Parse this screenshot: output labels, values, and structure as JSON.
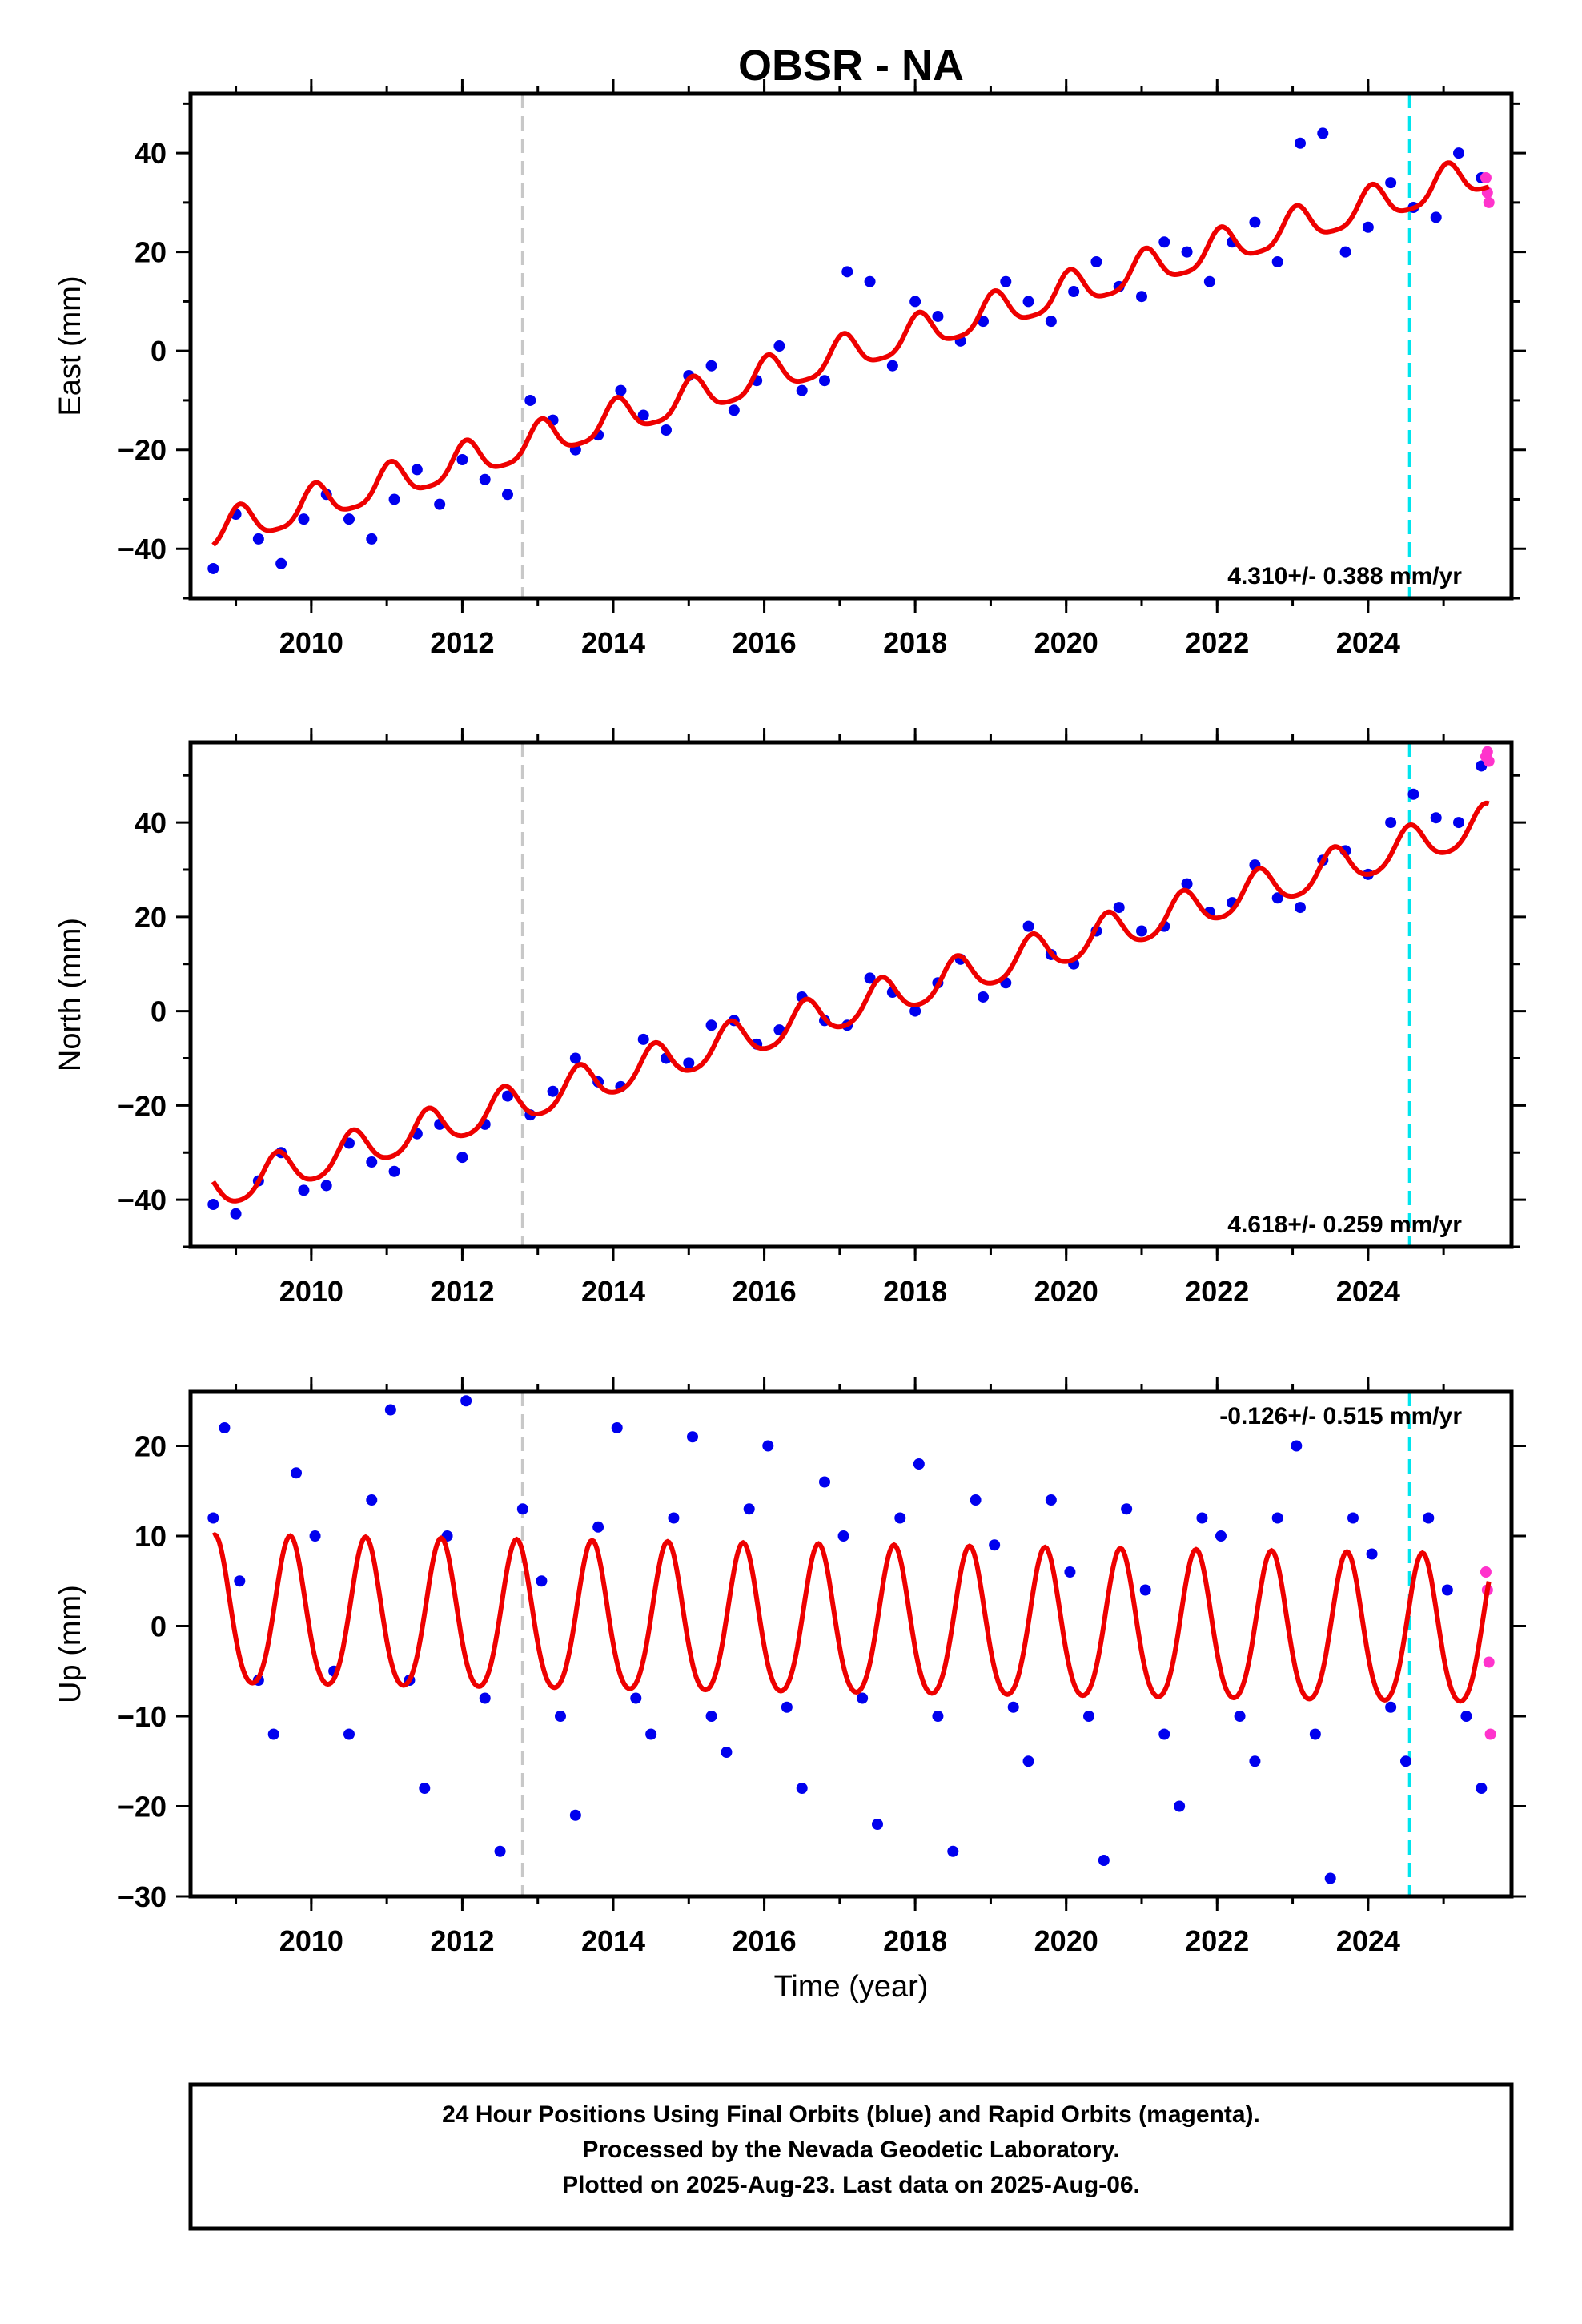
{
  "title": "OBSR - NA",
  "xlabel": "Time (year)",
  "footer": [
    "24 Hour Positions Using Final Orbits (blue) and Rapid Orbits (magenta).",
    "Processed by the Nevada Geodetic Laboratory.",
    "Plotted on 2025-Aug-23. Last data on 2025-Aug-06."
  ],
  "colors": {
    "final_orbits": "#0000ee",
    "rapid_orbits": "#ff33cc",
    "model": "#ee0000",
    "equipment_change": "#c8c8c8",
    "event": "#00e5ee"
  },
  "chart_data": [
    {
      "type": "scatter",
      "panel": "east",
      "ylabel": "East (mm)",
      "xlim": [
        2008.4,
        2025.9
      ],
      "ylim": [
        -50,
        52
      ],
      "xticks": [
        2010,
        2012,
        2014,
        2016,
        2018,
        2020,
        2022,
        2024
      ],
      "yticks": [
        -40,
        -20,
        0,
        20,
        40
      ],
      "rate_label": "4.310+/- 0.388 mm/yr",
      "rate_position": "bottom-right",
      "vlines": [
        {
          "x": 2012.8,
          "kind": "equipment_change"
        },
        {
          "x": 2024.55,
          "kind": "event"
        }
      ],
      "series": [
        {
          "kind": "final_orbits",
          "x": [
            2008.7,
            2009.0,
            2009.3,
            2009.6,
            2009.9,
            2010.2,
            2010.5,
            2010.8,
            2011.1,
            2011.4,
            2011.7,
            2012.0,
            2012.3,
            2012.6,
            2012.9,
            2013.2,
            2013.5,
            2013.8,
            2014.1,
            2014.4,
            2014.7,
            2015.0,
            2015.3,
            2015.6,
            2015.9,
            2016.2,
            2016.5,
            2016.8,
            2017.1,
            2017.4,
            2017.7,
            2018.0,
            2018.3,
            2018.6,
            2018.9,
            2019.2,
            2019.5,
            2019.8,
            2020.1,
            2020.4,
            2020.7,
            2021.0,
            2021.3,
            2021.6,
            2021.9,
            2022.2,
            2022.5,
            2022.8,
            2023.1,
            2023.4,
            2023.7,
            2024.0,
            2024.3,
            2024.6,
            2024.9,
            2025.2,
            2025.5
          ],
          "y": [
            -44,
            -33,
            -38,
            -43,
            -34,
            -29,
            -34,
            -38,
            -30,
            -24,
            -31,
            -22,
            -26,
            -29,
            -10,
            -14,
            -20,
            -17,
            -8,
            -13,
            -16,
            -5,
            -3,
            -12,
            -6,
            1,
            -8,
            -6,
            16,
            14,
            -3,
            10,
            7,
            2,
            6,
            14,
            10,
            6,
            12,
            18,
            13,
            11,
            22,
            20,
            14,
            22,
            26,
            18,
            42,
            44,
            20,
            25,
            34,
            29,
            27,
            40,
            35
          ]
        },
        {
          "kind": "rapid_orbits",
          "x": [
            2025.56,
            2025.58,
            2025.6
          ],
          "y": [
            35,
            32,
            30
          ]
        }
      ],
      "model": {
        "rate_mm_per_yr": 4.31,
        "t0": 2017.0,
        "y0": -1.1,
        "annual_amp": 3.6,
        "annual_phase_yr": 0.05,
        "semiannual_amp": 0.8
      }
    },
    {
      "type": "scatter",
      "panel": "north",
      "ylabel": "North (mm)",
      "xlim": [
        2008.4,
        2025.9
      ],
      "ylim": [
        -50,
        57
      ],
      "xticks": [
        2010,
        2012,
        2014,
        2016,
        2018,
        2020,
        2022,
        2024
      ],
      "yticks": [
        -40,
        -20,
        0,
        20,
        40
      ],
      "rate_label": "4.618+/- 0.259 mm/yr",
      "rate_position": "bottom-right",
      "vlines": [
        {
          "x": 2012.8,
          "kind": "equipment_change"
        },
        {
          "x": 2024.55,
          "kind": "event"
        }
      ],
      "series": [
        {
          "kind": "final_orbits",
          "x": [
            2008.7,
            2009.0,
            2009.3,
            2009.6,
            2009.9,
            2010.2,
            2010.5,
            2010.8,
            2011.1,
            2011.4,
            2011.7,
            2012.0,
            2012.3,
            2012.6,
            2012.9,
            2013.2,
            2013.5,
            2013.8,
            2014.1,
            2014.4,
            2014.7,
            2015.0,
            2015.3,
            2015.6,
            2015.9,
            2016.2,
            2016.5,
            2016.8,
            2017.1,
            2017.4,
            2017.7,
            2018.0,
            2018.3,
            2018.6,
            2018.9,
            2019.2,
            2019.5,
            2019.8,
            2020.1,
            2020.4,
            2020.7,
            2021.0,
            2021.3,
            2021.6,
            2021.9,
            2022.2,
            2022.5,
            2022.8,
            2023.1,
            2023.4,
            2023.7,
            2024.0,
            2024.3,
            2024.6,
            2024.9,
            2025.2,
            2025.5
          ],
          "y": [
            -41,
            -43,
            -36,
            -30,
            -38,
            -37,
            -28,
            -32,
            -34,
            -26,
            -24,
            -31,
            -24,
            -18,
            -22,
            -17,
            -10,
            -15,
            -16,
            -6,
            -10,
            -11,
            -3,
            -2,
            -7,
            -4,
            3,
            -2,
            -3,
            7,
            4,
            0,
            6,
            11,
            3,
            6,
            18,
            12,
            10,
            17,
            22,
            17,
            18,
            27,
            21,
            23,
            31,
            24,
            22,
            32,
            34,
            29,
            40,
            46,
            41,
            40,
            52
          ]
        },
        {
          "kind": "rapid_orbits",
          "x": [
            2025.56,
            2025.58,
            2025.6
          ],
          "y": [
            54,
            55,
            53
          ]
        }
      ],
      "model": {
        "rate_mm_per_yr": 4.618,
        "t0": 2017.0,
        "y0": 0.0,
        "annual_amp": 4.0,
        "annual_phase_yr": 0.55,
        "semiannual_amp": 0.6
      }
    },
    {
      "type": "scatter",
      "panel": "up",
      "ylabel": "Up (mm)",
      "xlim": [
        2008.4,
        2025.9
      ],
      "ylim": [
        -30,
        26
      ],
      "xticks": [
        2010,
        2012,
        2014,
        2016,
        2018,
        2020,
        2022,
        2024
      ],
      "yticks": [
        -30,
        -20,
        -10,
        0,
        10,
        20
      ],
      "rate_label": "-0.126+/- 0.515 mm/yr",
      "rate_position": "top-right",
      "vlines": [
        {
          "x": 2012.8,
          "kind": "equipment_change"
        },
        {
          "x": 2024.55,
          "kind": "event"
        }
      ],
      "series": [
        {
          "kind": "final_orbits",
          "x": [
            2008.7,
            2008.85,
            2009.05,
            2009.3,
            2009.5,
            2009.8,
            2010.05,
            2010.3,
            2010.5,
            2010.8,
            2011.05,
            2011.3,
            2011.5,
            2011.8,
            2012.05,
            2012.3,
            2012.5,
            2012.8,
            2013.05,
            2013.3,
            2013.5,
            2013.8,
            2014.05,
            2014.3,
            2014.5,
            2014.8,
            2015.05,
            2015.3,
            2015.5,
            2015.8,
            2016.05,
            2016.3,
            2016.5,
            2016.8,
            2017.05,
            2017.3,
            2017.5,
            2017.8,
            2018.05,
            2018.3,
            2018.5,
            2018.8,
            2019.05,
            2019.3,
            2019.5,
            2019.8,
            2020.05,
            2020.3,
            2020.5,
            2020.8,
            2021.05,
            2021.3,
            2021.5,
            2021.8,
            2022.05,
            2022.3,
            2022.5,
            2022.8,
            2023.05,
            2023.3,
            2023.5,
            2023.8,
            2024.05,
            2024.3,
            2024.5,
            2024.8,
            2025.05,
            2025.3,
            2025.5
          ],
          "y": [
            12,
            22,
            5,
            -6,
            -12,
            17,
            10,
            -5,
            -12,
            14,
            24,
            -6,
            -18,
            10,
            25,
            -8,
            -25,
            13,
            5,
            -10,
            -21,
            11,
            22,
            -8,
            -12,
            12,
            21,
            -10,
            -14,
            13,
            20,
            -9,
            -18,
            16,
            10,
            -8,
            -22,
            12,
            18,
            -10,
            -25,
            14,
            9,
            -9,
            -15,
            14,
            6,
            -10,
            -26,
            13,
            4,
            -12,
            -20,
            12,
            10,
            -10,
            -15,
            12,
            20,
            -12,
            -28,
            12,
            8,
            -9,
            -15,
            12,
            4,
            -10,
            -18
          ]
        },
        {
          "kind": "rapid_orbits",
          "x": [
            2025.56,
            2025.58,
            2025.6,
            2025.62
          ],
          "y": [
            6,
            4,
            -4,
            -12
          ]
        }
      ],
      "model": {
        "rate_mm_per_yr": -0.126,
        "t0": 2017.0,
        "y0": 0.0,
        "annual_amp": 8.2,
        "annual_phase_yr": 0.72,
        "semiannual_amp": 0.9
      }
    }
  ]
}
